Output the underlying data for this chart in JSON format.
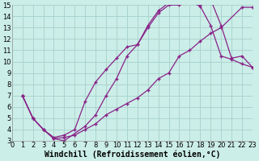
{
  "xlabel": "Windchill (Refroidissement éolien,°C)",
  "xlim": [
    0,
    23
  ],
  "ylim": [
    3,
    15
  ],
  "xticks": [
    0,
    1,
    2,
    3,
    4,
    5,
    6,
    7,
    8,
    9,
    10,
    11,
    12,
    13,
    14,
    15,
    16,
    17,
    18,
    19,
    20,
    21,
    22,
    23
  ],
  "yticks": [
    3,
    4,
    5,
    6,
    7,
    8,
    9,
    10,
    11,
    12,
    13,
    14,
    15
  ],
  "bg_color": "#cceee8",
  "grid_color": "#aad4ce",
  "line_color": "#882288",
  "line1_x": [
    1,
    2,
    3,
    4,
    5,
    6,
    7,
    8,
    9,
    10,
    11,
    12,
    13,
    14,
    15,
    16,
    17,
    18,
    19,
    20,
    21,
    22,
    23
  ],
  "line1_y": [
    7.0,
    5.0,
    4.0,
    3.3,
    3.5,
    4.0,
    6.5,
    8.2,
    9.3,
    10.3,
    11.3,
    11.5,
    13.0,
    14.3,
    15.0,
    15.0,
    15.3,
    14.9,
    13.2,
    10.5,
    10.2,
    9.8,
    9.5
  ],
  "line2_x": [
    1,
    2,
    3,
    4,
    5,
    6,
    7,
    8,
    9,
    10,
    11,
    12,
    13,
    14,
    15,
    16,
    17,
    18,
    19,
    20,
    22,
    23
  ],
  "line2_y": [
    7.0,
    5.0,
    4.0,
    3.2,
    3.3,
    3.5,
    4.0,
    4.5,
    5.3,
    5.8,
    6.3,
    6.8,
    7.5,
    8.5,
    9.0,
    10.5,
    11.0,
    11.8,
    12.5,
    13.0,
    14.8,
    14.8
  ],
  "line3_x": [
    1,
    2,
    3,
    4,
    5,
    7,
    8,
    9,
    10,
    11,
    12,
    13,
    14,
    15,
    16,
    17,
    18,
    19,
    20,
    21,
    22,
    23
  ],
  "line3_y": [
    7.0,
    5.0,
    4.0,
    3.2,
    3.0,
    4.3,
    5.3,
    7.0,
    8.5,
    10.5,
    11.5,
    13.2,
    14.5,
    15.2,
    15.2,
    15.5,
    15.0,
    15.5,
    13.2,
    10.3,
    10.5,
    9.5
  ],
  "tick_fontsize": 6,
  "xlabel_fontsize": 7
}
